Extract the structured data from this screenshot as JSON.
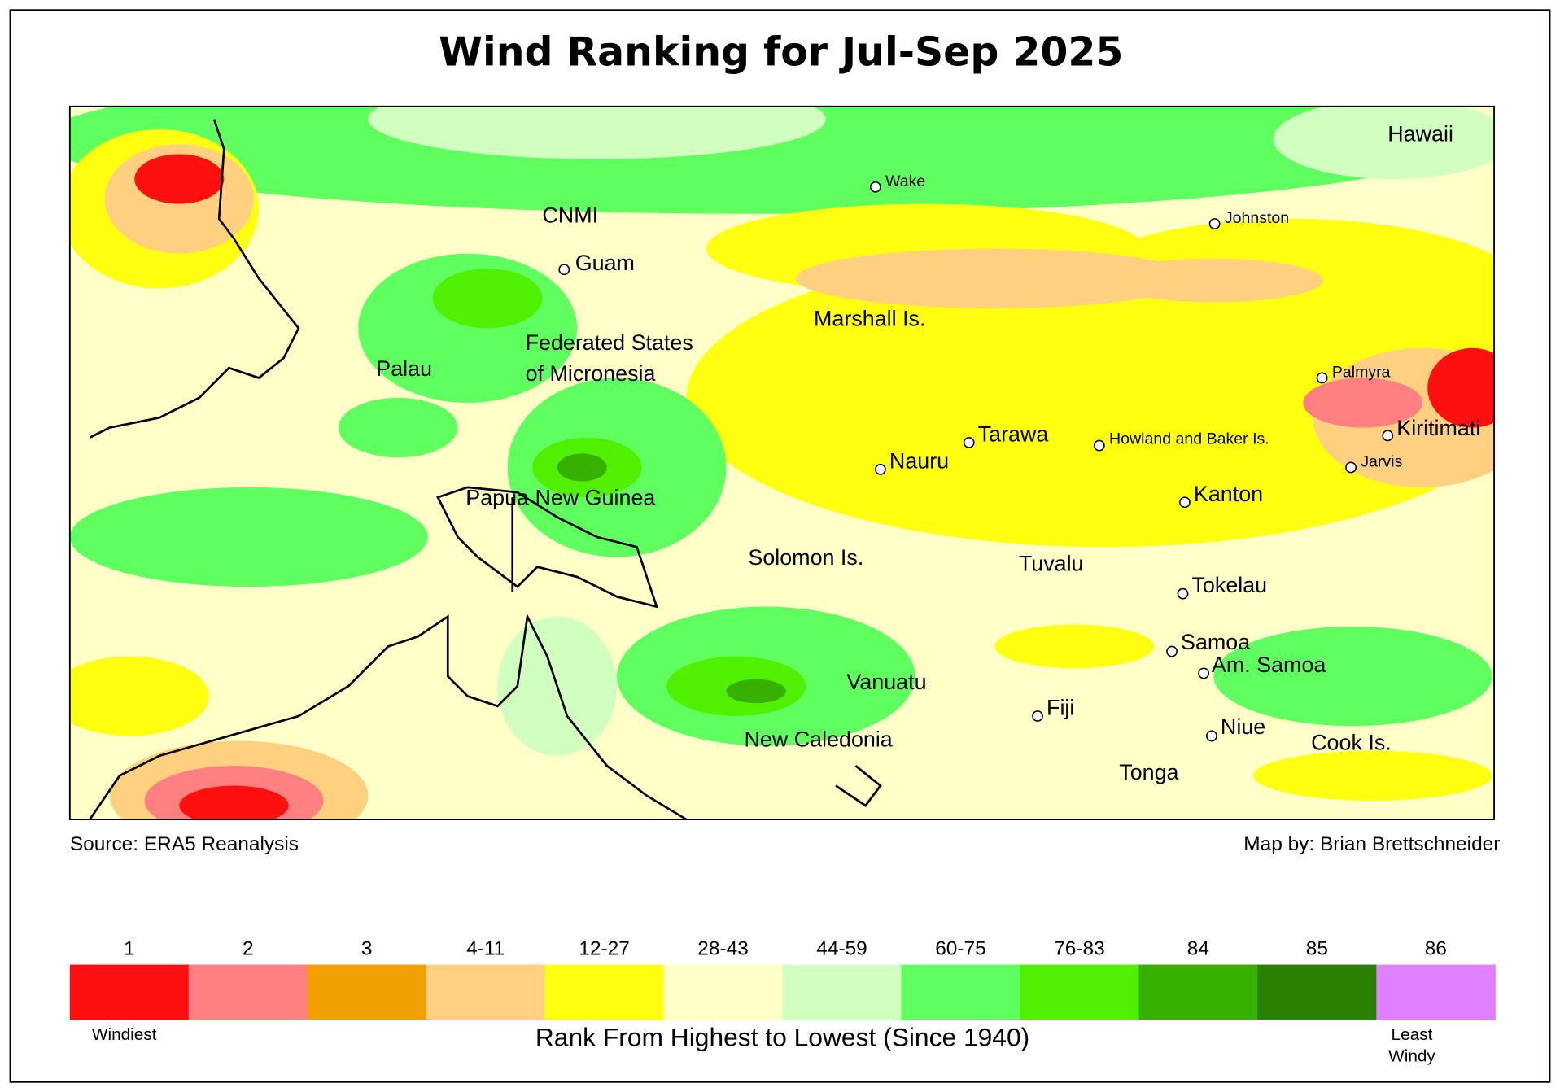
{
  "title": "Wind Ranking for Jul-Sep 2025",
  "places": [
    {
      "label": "Hawaii"
    },
    {
      "label": "Wake"
    },
    {
      "label": "Johnston"
    },
    {
      "label": "CNMI"
    },
    {
      "label": "Guam"
    },
    {
      "label": "Marshall Is."
    },
    {
      "label": "Palau"
    },
    {
      "label": [
        "Federated States",
        "of Micronesia"
      ]
    },
    {
      "label": "Palmyra"
    },
    {
      "label": "Kiritimati"
    },
    {
      "label": "Tarawa"
    },
    {
      "label": "Howland and Baker Is."
    },
    {
      "label": "Nauru"
    },
    {
      "label": "Jarvis"
    },
    {
      "label": "Kanton"
    },
    {
      "label": "Papua New Guinea"
    },
    {
      "label": "Solomon Is."
    },
    {
      "label": "Tuvalu"
    },
    {
      "label": "Tokelau"
    },
    {
      "label": "Samoa"
    },
    {
      "label": "Am. Samoa"
    },
    {
      "label": "Vanuatu"
    },
    {
      "label": "Fiji"
    },
    {
      "label": "New Caledonia"
    },
    {
      "label": "Niue"
    },
    {
      "label": "Cook Is."
    },
    {
      "label": "Tonga"
    }
  ],
  "source": "Source: ERA5 Reanalysis",
  "credit": "Map by: Brian Brettschneider",
  "legend": {
    "items": [
      {
        "label": "1",
        "color": "#ff1010"
      },
      {
        "label": "2",
        "color": "#ff8080"
      },
      {
        "label": "3",
        "color": "#f2a000"
      },
      {
        "label": "4-11",
        "color": "#ffd080"
      },
      {
        "label": "12-27",
        "color": "#ffff10"
      },
      {
        "label": "28-43",
        "color": "#ffffc8"
      },
      {
        "label": "44-59",
        "color": "#d0ffc0"
      },
      {
        "label": "60-75",
        "color": "#60ff60"
      },
      {
        "label": "76-83",
        "color": "#50f000"
      },
      {
        "label": "84",
        "color": "#38b000"
      },
      {
        "label": "85",
        "color": "#2a8000"
      },
      {
        "label": "86",
        "color": "#e080ff"
      }
    ],
    "low_label": "Windiest",
    "high_label": [
      "Least",
      "Windy"
    ],
    "axis_label": "Rank From Highest to Lowest (Since 1940)"
  }
}
